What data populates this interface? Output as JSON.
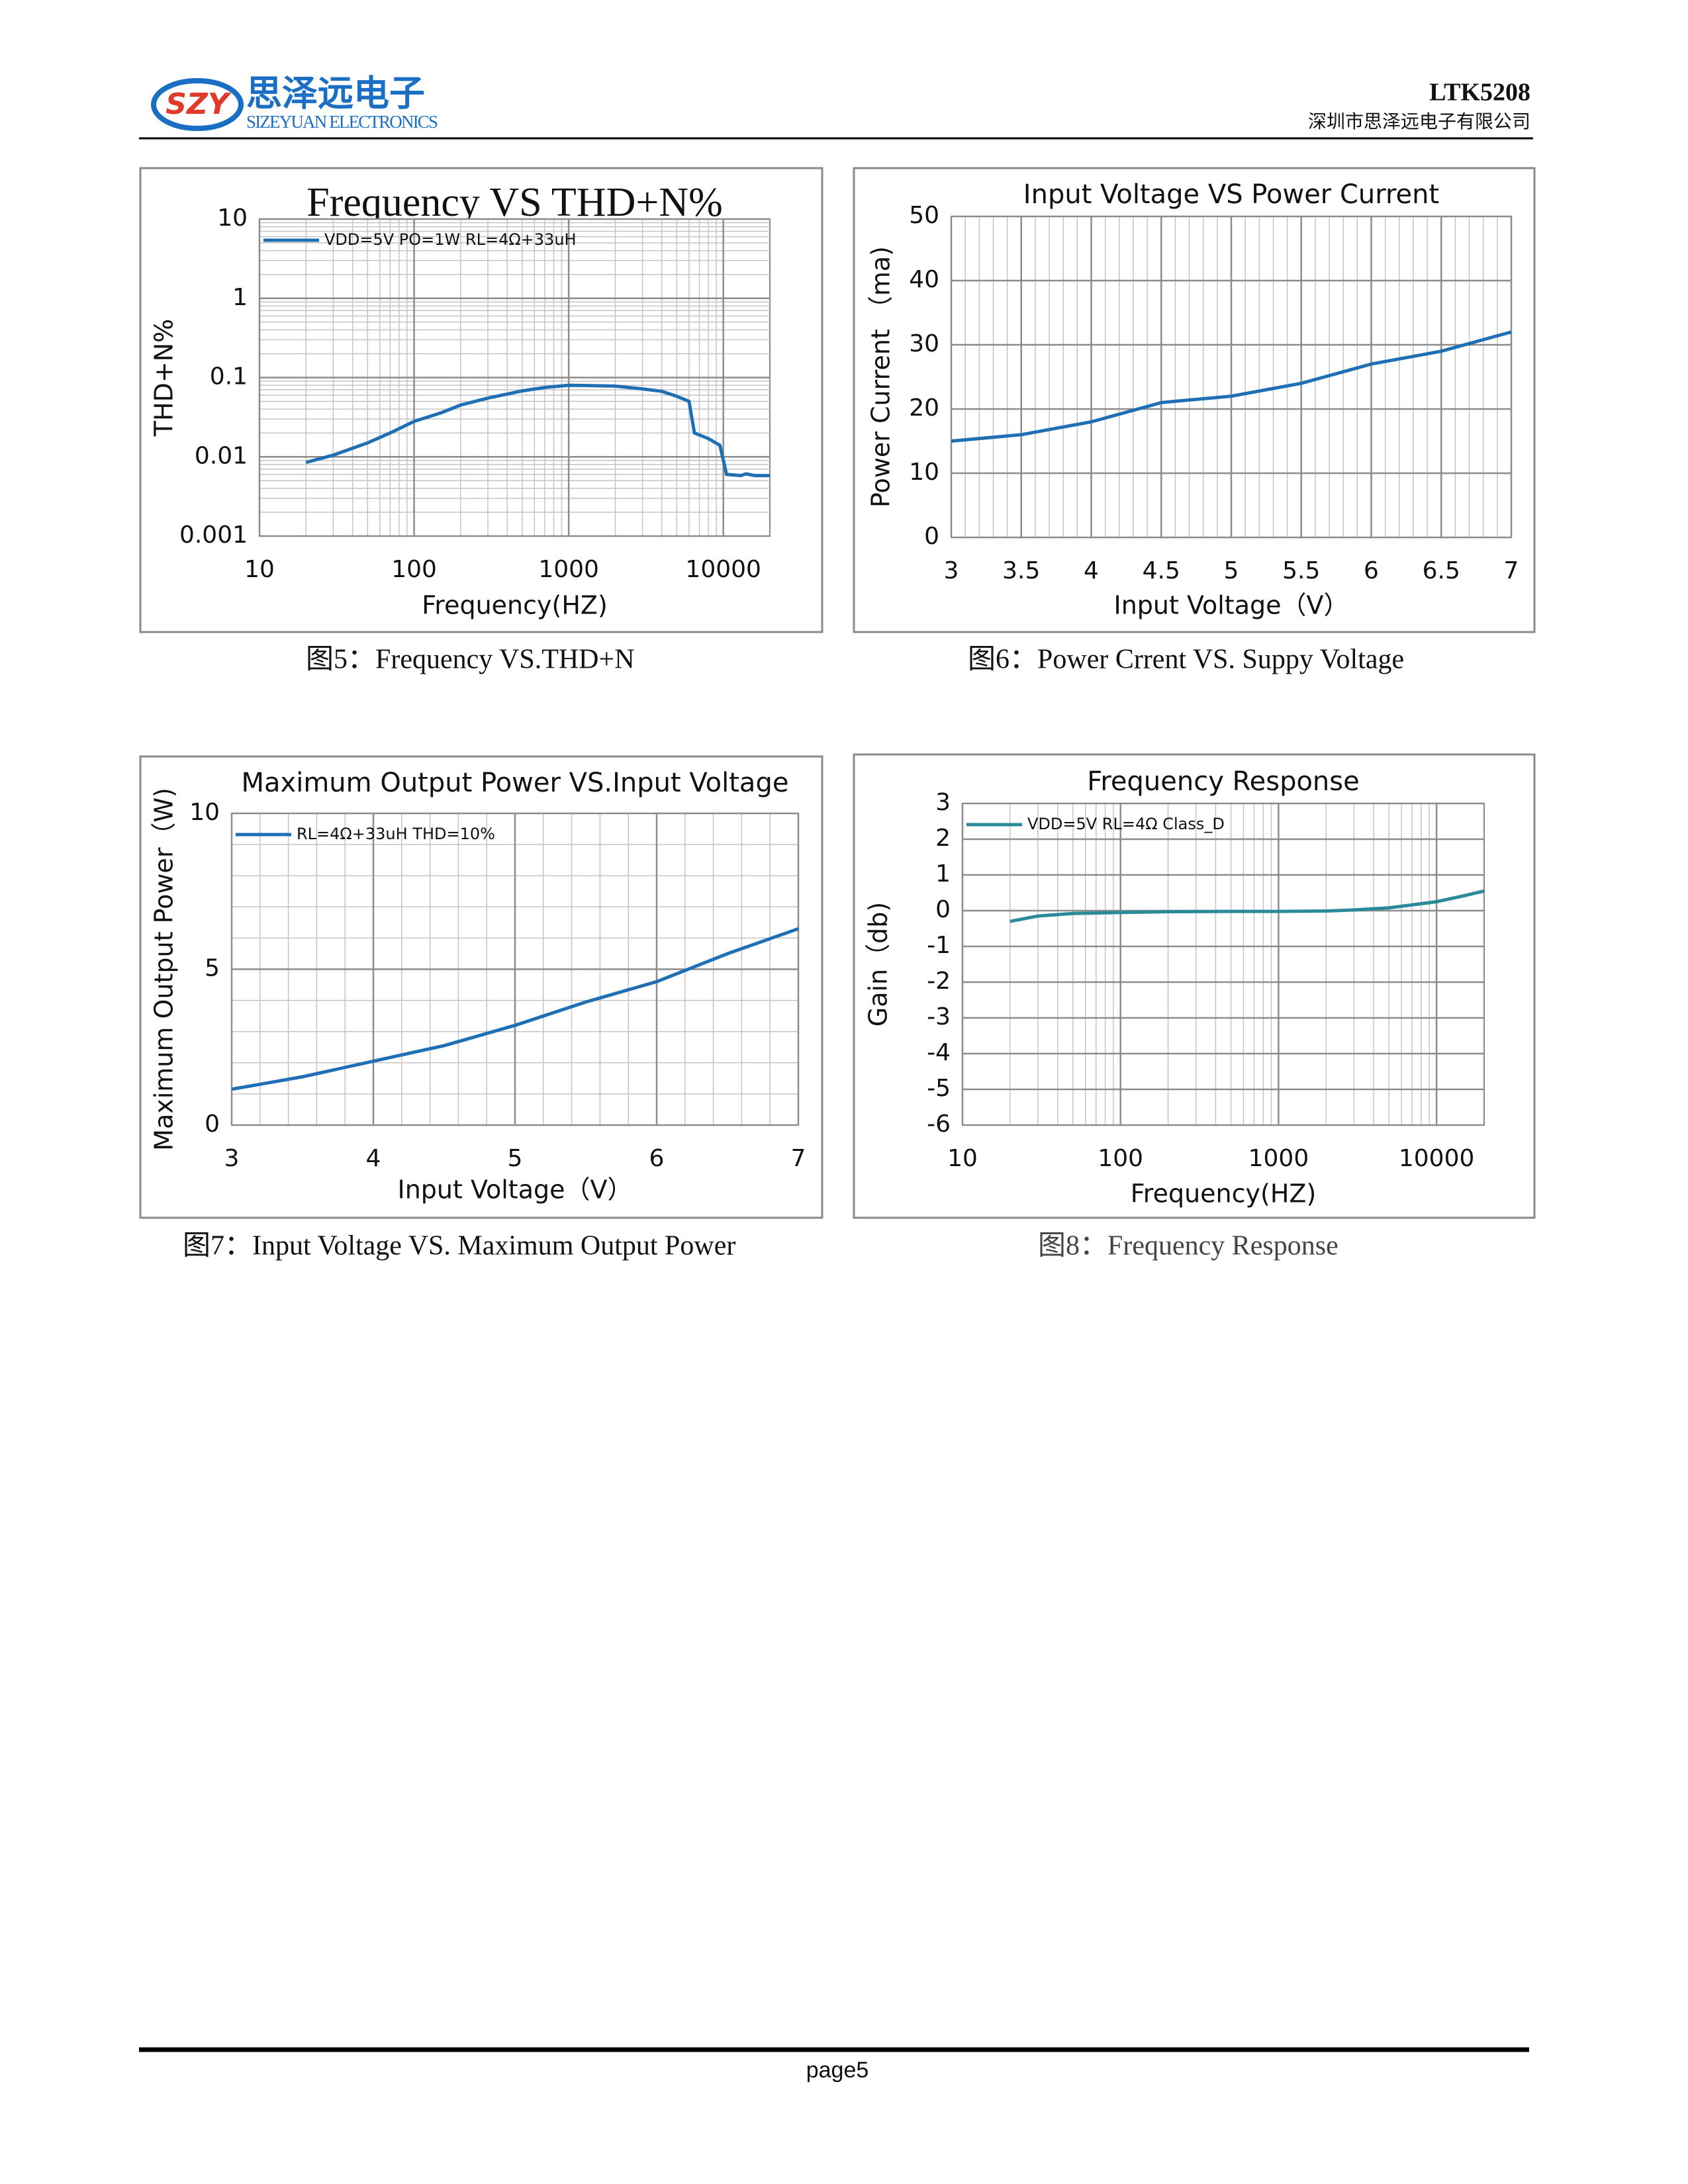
{
  "header": {
    "logo_mark": "SZY",
    "logo_cn": "思泽远电子",
    "logo_en": "SIZEYUAN ELECTRONICS",
    "part": "LTK5208",
    "company": "深圳市思泽远电子有限公司"
  },
  "captions": [
    "图5：Frequency VS.THD+N",
    "图6：Power Crrent VS. Suppy Voltage",
    "图7：Input Voltage VS. Maximum Output Power",
    "图8：Frequency Response"
  ],
  "footer": {
    "page": "page5"
  },
  "chart_data": [
    {
      "type": "line",
      "title": "Frequency VS THD+N%",
      "x_label": "Frequency(HZ)",
      "y_label": "THD+N%",
      "x_log": true,
      "y_log": true,
      "grid": true,
      "legend": "upper left",
      "xlim": [
        10,
        20000
      ],
      "xticks": [
        10,
        100,
        1000,
        10000
      ],
      "ylim": [
        0.001,
        10
      ],
      "yticks": [
        0.001,
        0.01,
        0.1,
        1,
        10
      ],
      "x": [
        20,
        30,
        50,
        70,
        100,
        150,
        200,
        300,
        500,
        700,
        1000,
        2000,
        3000,
        4000,
        5000,
        6000,
        6500,
        8000,
        9500,
        10500,
        13000,
        14000,
        16000,
        20000
      ],
      "series": [
        {
          "name": "VDD=5V  PO=1W RL=4Ω+33uH",
          "color": "#1f6fb5",
          "values": [
            0.0085,
            0.0105,
            0.015,
            0.02,
            0.028,
            0.036,
            0.045,
            0.055,
            0.068,
            0.075,
            0.08,
            0.078,
            0.072,
            0.067,
            0.058,
            0.05,
            0.02,
            0.017,
            0.014,
            0.006,
            0.0058,
            0.0061,
            0.0058,
            0.0058
          ]
        }
      ]
    },
    {
      "type": "line",
      "title": "Input Voltage VS Power Current",
      "x_label": "Input Voltage（V）",
      "y_label": "Power Current （ma)",
      "x_log": false,
      "y_log": false,
      "grid": true,
      "xlim": [
        3,
        7
      ],
      "xticks": [
        3,
        3.5,
        4,
        4.5,
        5,
        5.5,
        6,
        6.5,
        7
      ],
      "ylim": [
        0,
        50
      ],
      "yticks": [
        0,
        10,
        20,
        30,
        40,
        50
      ],
      "x": [
        3,
        3.5,
        4,
        4.5,
        5,
        5.5,
        6,
        6.5,
        7
      ],
      "series": [
        {
          "color": "#1f6fb5",
          "values": [
            15,
            16,
            18,
            21,
            22,
            24,
            27,
            29,
            32
          ]
        }
      ]
    },
    {
      "type": "line",
      "title": "Maximum Output Power VS.Input Voltage",
      "x_label": "Input Voltage（V）",
      "y_label": "Maximum Output Power（W)",
      "x_log": false,
      "y_log": false,
      "grid": true,
      "legend": "upper left",
      "xlim": [
        3,
        7
      ],
      "xticks": [
        3,
        4,
        5,
        6,
        7
      ],
      "ylim": [
        0,
        10
      ],
      "yticks": [
        0,
        5,
        10
      ],
      "x": [
        3,
        3.5,
        4,
        4.5,
        5,
        5.5,
        6,
        6.5,
        7
      ],
      "series": [
        {
          "name": "RL=4Ω+33uH THD=10%",
          "color": "#1f6fb5",
          "values": [
            1.15,
            1.55,
            2.05,
            2.55,
            3.2,
            3.95,
            4.6,
            5.5,
            6.3
          ]
        }
      ]
    },
    {
      "type": "line",
      "title": "Frequency Response",
      "x_label": "Frequency(HZ)",
      "y_label": "Gain（db)",
      "x_log": true,
      "y_log": false,
      "grid": true,
      "legend": "upper left",
      "xlim": [
        10,
        20000
      ],
      "xticks": [
        10,
        100,
        1000,
        10000
      ],
      "ylim": [
        -6,
        3
      ],
      "yticks": [
        -6,
        -5,
        -4,
        -3,
        -2,
        -1,
        0,
        1,
        2,
        3
      ],
      "x": [
        20,
        30,
        50,
        100,
        200,
        500,
        1000,
        2000,
        3000,
        5000,
        10000,
        15000,
        20000
      ],
      "series": [
        {
          "name": "VDD=5V RL=4Ω Class_D",
          "color": "#2a8a9a",
          "values": [
            -0.3,
            -0.15,
            -0.08,
            -0.05,
            -0.03,
            -0.02,
            -0.02,
            -0.01,
            0.02,
            0.08,
            0.25,
            0.42,
            0.55
          ]
        }
      ]
    }
  ]
}
